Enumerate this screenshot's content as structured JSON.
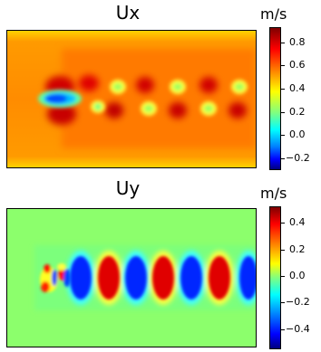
{
  "chart_data": [
    {
      "type": "heatmap",
      "title": "Ux",
      "colorbar_label": "m/s",
      "colorbar_range": [
        -0.3,
        0.95
      ],
      "colorbar_ticks": [
        "0.8",
        "0.6",
        "0.4",
        "0.2",
        "0.0",
        "−0.2"
      ],
      "colorbar_tick_values": [
        0.8,
        0.6,
        0.4,
        0.2,
        0.0,
        -0.2
      ],
      "colormap": "jet",
      "background_value": 0.7
    },
    {
      "type": "heatmap",
      "title": "Uy",
      "colorbar_label": "m/s",
      "colorbar_range": [
        -0.55,
        0.55
      ],
      "colorbar_ticks": [
        "0.4",
        "0.2",
        "0.0",
        "−0.2",
        "−0.4"
      ],
      "colorbar_tick_values": [
        0.4,
        0.2,
        0.0,
        -0.2,
        -0.4
      ],
      "colormap": "jet",
      "background_value": 0.0
    }
  ],
  "colors": {
    "jet_top": "#7f0000",
    "jet_red": "#ff0000",
    "jet_yellow": "#ffff00",
    "jet_green": "#7fff7f",
    "jet_cyan": "#00ffff",
    "jet_blue": "#0000ff",
    "jet_bottom": "#00007f"
  }
}
